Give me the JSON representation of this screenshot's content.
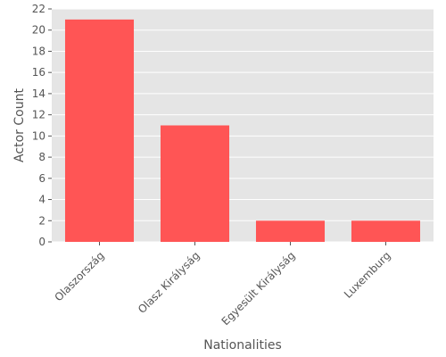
{
  "chart_data": {
    "type": "bar",
    "categories": [
      "Olaszország",
      "Olasz Királyság",
      "Egyesült Királyság",
      "Luxemburg"
    ],
    "values": [
      21,
      11,
      2,
      2
    ],
    "xlabel": "Nationalities",
    "ylabel": "Actor Count",
    "ylim": [
      0,
      22
    ],
    "yticks": [
      0,
      2,
      4,
      6,
      8,
      10,
      12,
      14,
      16,
      18,
      20,
      22
    ],
    "grid": true,
    "bar_color": "#ff5555",
    "plot_background": "#e5e5e5",
    "grid_color": "#ffffff"
  }
}
